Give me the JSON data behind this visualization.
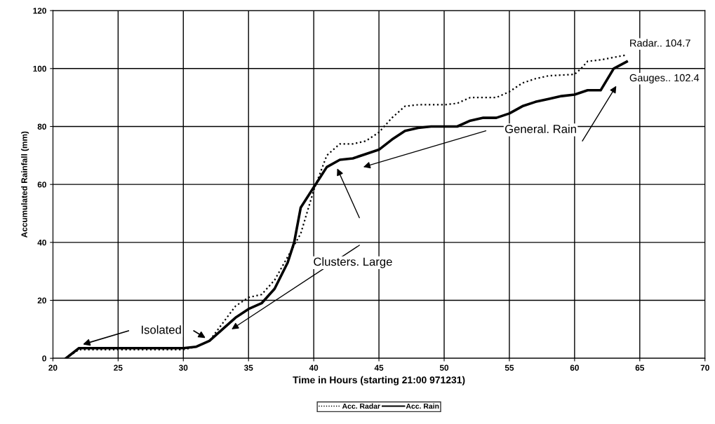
{
  "chart_data": {
    "type": "line",
    "xlabel": "Time in Hours (starting 21:00 971231)",
    "ylabel": "Accumulated Rainfall (mm)",
    "xlim": [
      20,
      70
    ],
    "xticks": [
      20,
      25,
      30,
      35,
      40,
      45,
      50,
      55,
      60,
      65,
      70
    ],
    "ylim": [
      0,
      120
    ],
    "yticks": [
      0,
      20,
      40,
      60,
      80,
      100,
      120
    ],
    "grid": true,
    "legend": "bottom",
    "marker": "none",
    "series": [
      {
        "name": "Acc. Radar",
        "color": "#000000",
        "line_style": "dotted",
        "x": [
          21,
          22,
          30,
          31,
          32,
          33,
          34,
          35,
          36,
          37,
          38,
          39,
          40,
          40.5,
          41,
          42,
          43,
          44,
          45,
          46,
          47,
          48,
          50,
          51,
          52,
          54,
          55,
          56,
          57,
          58,
          60,
          60.5,
          61,
          62,
          64
        ],
        "values": [
          0,
          3,
          3,
          4,
          6,
          12,
          18,
          21,
          22,
          27,
          35,
          43,
          58,
          64,
          70,
          74,
          74,
          75,
          78,
          83,
          87,
          87.5,
          87.5,
          88,
          90,
          90,
          92,
          95,
          96.5,
          97.5,
          98,
          100,
          102.5,
          103,
          104.7
        ]
      },
      {
        "name": "Acc. Rain",
        "color": "#000000",
        "line_style": "solid",
        "x": [
          21,
          22,
          26,
          30,
          31,
          32,
          33,
          34,
          35,
          36,
          37,
          38,
          38.5,
          39,
          40,
          41,
          42,
          43,
          44,
          45,
          46,
          47,
          48,
          49,
          50,
          51,
          52,
          53,
          54,
          55,
          56,
          57,
          58,
          59,
          60,
          61,
          62,
          63,
          64
        ],
        "values": [
          0,
          3.5,
          3.5,
          3.5,
          4,
          6,
          10,
          14,
          17,
          19,
          24,
          33,
          40,
          52,
          59,
          66,
          68.5,
          69,
          70.5,
          72,
          75.5,
          78.5,
          79.5,
          80,
          80,
          80,
          82,
          83,
          83,
          84.5,
          87,
          88.5,
          89.5,
          90.5,
          91,
          92.5,
          92.5,
          100,
          102.4
        ]
      }
    ],
    "annotations": [
      "Isolated",
      "Clusters. Large",
      "General. Rain",
      "Radar.. 104.7",
      "Gauges.. 102.4"
    ]
  }
}
